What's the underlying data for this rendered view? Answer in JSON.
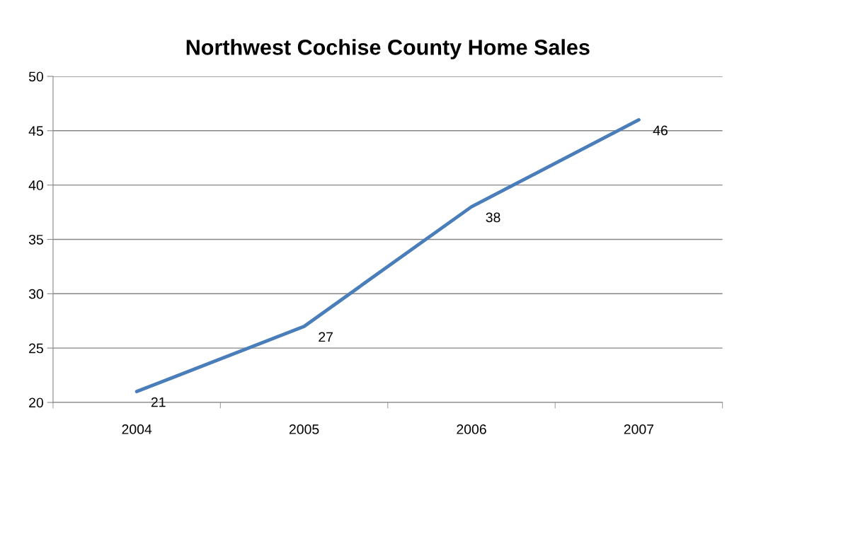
{
  "chart_data": {
    "type": "line",
    "title": "Northwest Cochise County Home Sales",
    "categories": [
      "2004",
      "2005",
      "2006",
      "2007"
    ],
    "series": [
      {
        "color": "#4a7ebb",
        "values": [
          21,
          27,
          38,
          46
        ]
      }
    ],
    "ylim": [
      20,
      50
    ],
    "yticks": [
      20,
      25,
      30,
      35,
      40,
      45,
      50
    ],
    "grid": "y",
    "legend": false,
    "marker": "none",
    "line_style": "solid",
    "data_labels": true
  }
}
